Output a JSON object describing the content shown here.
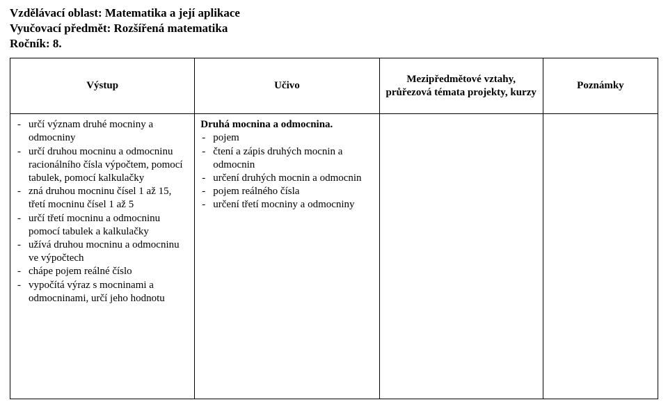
{
  "header": {
    "line1": "Vzdělávací oblast: Matematika a její aplikace",
    "line2": "Vyučovací předmět: Rozšířená  matematika",
    "line3": "Ročník: 8."
  },
  "table": {
    "columns": [
      "Výstup",
      "Učivo",
      "Mezipředmětové vztahy, průřezová témata projekty, kurzy",
      "Poznámky"
    ],
    "vystup_items": [
      "určí  význam druhé mocniny a odmocniny",
      "určí druhou mocninu a odmocninu racionálního čísla  výpočtem, pomocí tabulek, pomocí  kalkulačky",
      "zná druhou mocninu čísel 1 až 15, třetí  mocninu čísel  1 až 5",
      "určí třetí mocninu a odmocninu pomocí  tabulek a kalkulačky",
      "užívá druhou mocninu a odmocninu  ve výpočtech",
      "chápe pojem reálné číslo",
      "vypočítá výraz s mocninami a odmocninami, určí jeho hodnotu"
    ],
    "ucivo_title": "Druhá mocnina a odmocnina.",
    "ucivo_items": [
      "pojem",
      "čtení a zápis druhých mocnin a odmocnin",
      "určení druhých mocnin a odmocnin",
      "pojem reálného čísla",
      "určení třetí mocniny a odmocniny"
    ]
  }
}
